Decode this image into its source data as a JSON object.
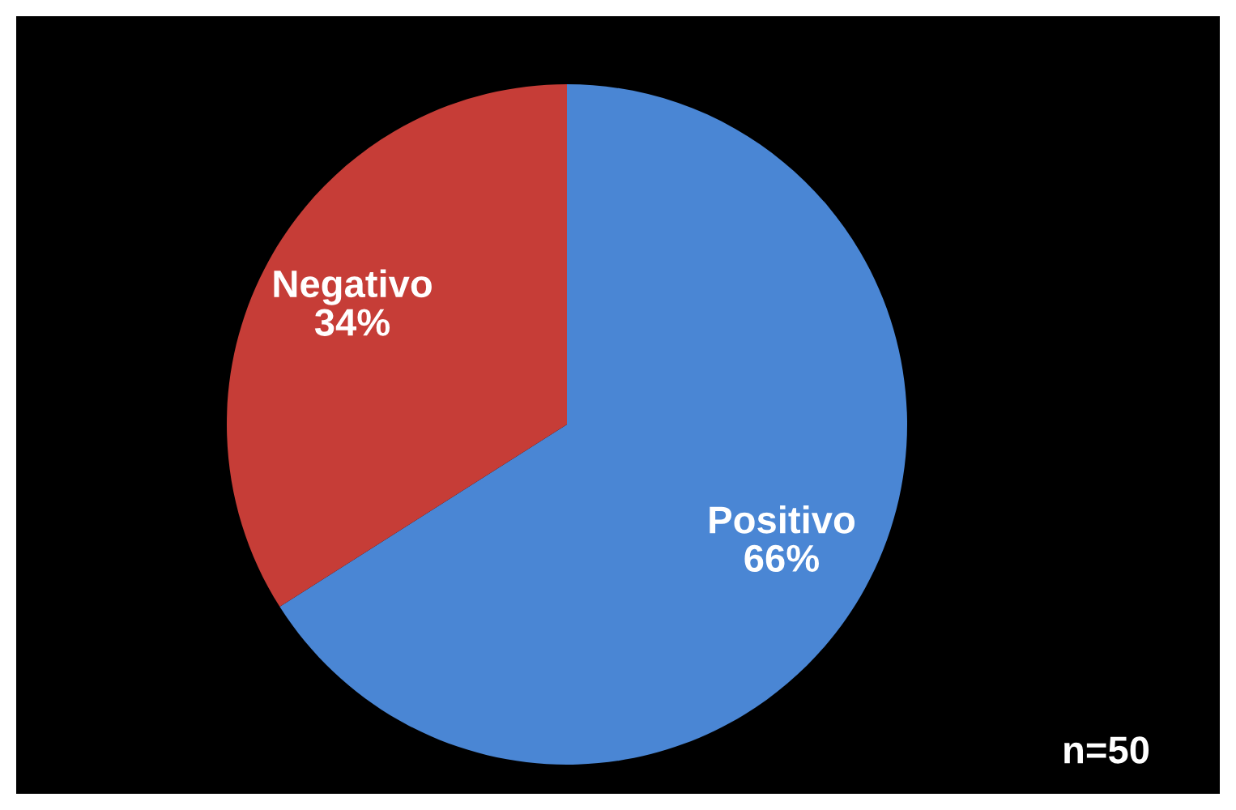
{
  "chart_data": {
    "type": "pie",
    "categories": [
      "Positivo",
      "Negativo"
    ],
    "values": [
      66,
      34
    ],
    "value_labels": [
      "66%",
      "34%"
    ],
    "colors": [
      "#4a86d4",
      "#c63d37"
    ],
    "annotations": [
      "n=50"
    ]
  }
}
